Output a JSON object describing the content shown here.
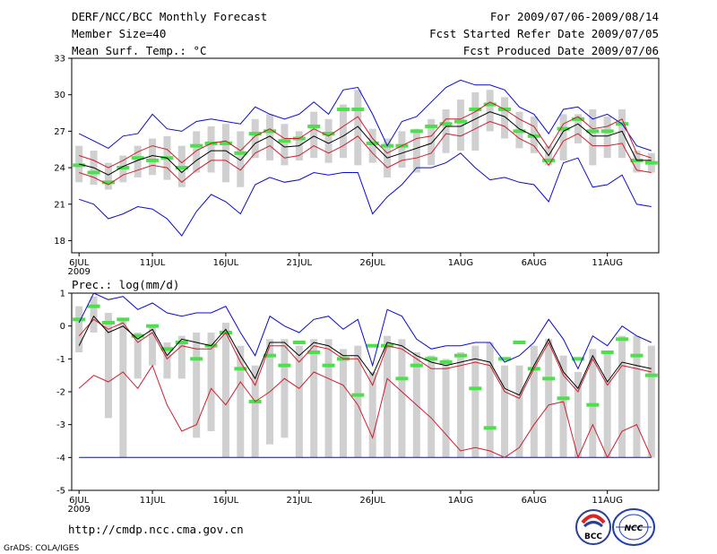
{
  "header": {
    "title": "DERF/NCC/BCC Monthly Forecast",
    "member_size": "Member Size=40",
    "variable": "Mean Surf. Temp.: °C",
    "period": "For 2009/07/06-2009/08/14",
    "started": "Fcst Started Refer Date 2009/07/05",
    "produced": "Fcst Produced Date 2009/07/06"
  },
  "footer": {
    "url": "http://cmdp.ncc.cma.gov.cn",
    "credit": "GrADS: COLA/IGES",
    "logo_bcc": "BCC",
    "logo_ncc": "NCC"
  },
  "colors": {
    "mean": "#000000",
    "spread": "#cc1f2e",
    "extreme": "#0b0bcc",
    "box": "#d0d0d0",
    "median": "#4ce04c"
  },
  "chart_data": [
    {
      "type": "box",
      "title": "Mean Surf. Temp.: °C",
      "x_tick_labels": [
        "6JUL",
        "11JUL",
        "16JUL",
        "21JUL",
        "26JUL",
        "1AUG",
        "6AUG",
        "11AUG"
      ],
      "x_tick_days": [
        1,
        6,
        11,
        16,
        21,
        27,
        32,
        37
      ],
      "year_label": "2009",
      "ylim": [
        17,
        33
      ],
      "y_ticks": [
        18,
        21,
        24,
        27,
        30,
        33
      ],
      "days": 40,
      "mean": [
        24.3,
        24.0,
        23.4,
        24.1,
        24.6,
        25.0,
        24.8,
        23.6,
        24.6,
        25.4,
        25.4,
        24.6,
        26.0,
        26.6,
        25.7,
        25.8,
        26.6,
        26.0,
        26.6,
        27.4,
        26.0,
        24.8,
        25.2,
        25.6,
        26.0,
        27.4,
        27.4,
        28.0,
        28.6,
        28.2,
        27.2,
        26.6,
        25.0,
        27.0,
        27.6,
        26.6,
        26.6,
        27.0,
        24.6,
        24.6
      ],
      "upper": [
        25.0,
        24.6,
        24.0,
        24.6,
        25.3,
        25.8,
        25.5,
        24.4,
        25.4,
        26.0,
        26.2,
        25.4,
        26.6,
        27.2,
        26.4,
        26.4,
        27.2,
        26.6,
        27.4,
        28.2,
        26.4,
        25.2,
        25.8,
        26.4,
        26.6,
        28.0,
        28.0,
        28.6,
        29.4,
        28.8,
        28.0,
        27.4,
        25.6,
        27.6,
        28.2,
        27.2,
        27.4,
        28.0,
        25.2,
        24.8
      ],
      "lower": [
        23.6,
        23.2,
        22.6,
        23.4,
        23.8,
        24.2,
        24.0,
        22.8,
        23.8,
        24.6,
        24.6,
        23.8,
        25.2,
        25.8,
        24.8,
        25.0,
        25.8,
        25.2,
        25.8,
        26.6,
        25.2,
        24.0,
        24.6,
        24.8,
        25.2,
        26.8,
        26.6,
        27.2,
        27.8,
        27.4,
        26.4,
        25.8,
        24.2,
        26.2,
        26.8,
        25.8,
        25.8,
        26.0,
        23.8,
        23.6
      ],
      "max": [
        26.8,
        26.2,
        25.6,
        26.6,
        26.8,
        28.4,
        27.2,
        27.0,
        27.8,
        28.0,
        27.8,
        27.6,
        29.0,
        28.4,
        28.0,
        28.4,
        29.4,
        28.4,
        30.4,
        30.6,
        28.4,
        25.8,
        27.8,
        28.2,
        29.4,
        30.6,
        31.2,
        30.8,
        30.8,
        30.4,
        29.0,
        28.4,
        26.8,
        28.8,
        29.0,
        28.0,
        28.4,
        27.6,
        25.8,
        25.4
      ],
      "min": [
        21.4,
        21.0,
        19.8,
        20.2,
        20.8,
        20.6,
        19.8,
        18.4,
        20.4,
        21.8,
        21.2,
        20.2,
        22.6,
        23.2,
        22.8,
        23.0,
        23.6,
        23.4,
        23.6,
        23.6,
        20.2,
        21.6,
        22.6,
        24.0,
        24.0,
        24.4,
        25.2,
        24.0,
        23.0,
        23.2,
        22.8,
        22.6,
        21.2,
        24.4,
        24.8,
        22.4,
        22.6,
        23.4,
        21.0,
        20.8
      ],
      "box_hi": [
        25.8,
        25.4,
        24.4,
        25.0,
        25.8,
        26.4,
        26.6,
        25.8,
        27.0,
        27.4,
        27.6,
        27.0,
        28.0,
        28.4,
        27.6,
        27.0,
        28.6,
        28.0,
        29.2,
        30.4,
        27.2,
        26.4,
        27.0,
        27.2,
        28.0,
        28.8,
        29.6,
        30.2,
        30.4,
        29.8,
        28.6,
        28.2,
        25.8,
        28.4,
        28.4,
        28.8,
        28.2,
        28.8,
        25.4,
        25.2
      ],
      "box_lo": [
        22.8,
        22.6,
        22.2,
        22.8,
        23.2,
        23.4,
        23.0,
        22.4,
        23.6,
        23.6,
        22.8,
        22.4,
        24.8,
        24.6,
        24.2,
        24.6,
        24.8,
        24.4,
        24.8,
        24.2,
        24.4,
        23.2,
        24.0,
        23.6,
        24.2,
        25.2,
        25.4,
        25.4,
        27.0,
        26.4,
        25.6,
        25.2,
        24.2,
        24.6,
        26.0,
        24.2,
        24.8,
        24.8,
        23.6,
        23.6
      ],
      "median": [
        24.2,
        23.6,
        22.8,
        24.0,
        24.8,
        24.6,
        24.8,
        24.0,
        25.8,
        26.0,
        26.0,
        25.2,
        26.8,
        27.0,
        26.2,
        26.4,
        27.4,
        26.8,
        28.8,
        28.8,
        26.0,
        25.8,
        25.8,
        27.0,
        27.4,
        27.6,
        27.8,
        28.8,
        29.2,
        28.8,
        27.0,
        26.6,
        24.6,
        27.2,
        28.0,
        27.0,
        27.0,
        27.6,
        24.6,
        24.4
      ]
    },
    {
      "type": "box",
      "title": "Prec.: log(mm/d)",
      "x_tick_labels": [
        "6JUL",
        "11JUL",
        "16JUL",
        "21JUL",
        "26JUL",
        "1AUG",
        "6AUG",
        "11AUG"
      ],
      "x_tick_days": [
        1,
        6,
        11,
        16,
        21,
        27,
        32,
        37
      ],
      "year_label": "2009",
      "ylim": [
        -5,
        1
      ],
      "y_ticks": [
        -5,
        -4,
        -3,
        -2,
        -1,
        0,
        1
      ],
      "days": 40,
      "mean": [
        -0.6,
        0.3,
        -0.2,
        0.0,
        -0.4,
        -0.1,
        -0.9,
        -0.4,
        -0.5,
        -0.6,
        -0.1,
        -0.9,
        -1.6,
        -0.5,
        -0.5,
        -0.9,
        -0.5,
        -0.6,
        -0.9,
        -0.9,
        -1.5,
        -0.5,
        -0.6,
        -0.9,
        -1.1,
        -1.2,
        -1.1,
        -1.0,
        -1.1,
        -1.9,
        -2.1,
        -1.2,
        -0.4,
        -1.4,
        -1.9,
        -0.9,
        -1.7,
        -1.1,
        -1.2,
        -1.3
      ],
      "upper": [
        -0.3,
        0.2,
        -0.1,
        0.1,
        -0.5,
        -0.2,
        -1.0,
        -0.6,
        -0.7,
        -0.7,
        -0.2,
        -1.1,
        -1.8,
        -0.6,
        -0.6,
        -1.1,
        -0.6,
        -0.7,
        -1.0,
        -1.0,
        -1.8,
        -0.6,
        -0.7,
        -1.0,
        -1.3,
        -1.3,
        -1.2,
        -1.1,
        -1.2,
        -2.0,
        -2.2,
        -1.3,
        -0.5,
        -1.5,
        -2.0,
        -1.0,
        -1.8,
        -1.2,
        -1.3,
        -1.4
      ],
      "lower": [
        -1.9,
        -1.5,
        -1.7,
        -1.4,
        -1.9,
        -1.2,
        -2.4,
        -3.2,
        -3.0,
        -1.9,
        -2.4,
        -1.7,
        -2.3,
        -2.0,
        -1.6,
        -1.9,
        -1.4,
        -1.6,
        -1.8,
        -2.4,
        -3.4,
        -1.6,
        -2.0,
        -2.4,
        -2.8,
        -3.3,
        -3.8,
        -3.7,
        -3.8,
        -4.0,
        -3.7,
        -3.0,
        -2.4,
        -2.3,
        -4.0,
        -3.0,
        -4.0,
        -3.2,
        -3.0,
        -4.0
      ],
      "max": [
        0.1,
        1.0,
        0.8,
        0.9,
        0.5,
        0.7,
        0.4,
        0.3,
        0.4,
        0.4,
        0.6,
        -0.2,
        -0.9,
        0.3,
        0.0,
        -0.2,
        0.2,
        0.3,
        -0.1,
        0.2,
        -1.2,
        0.5,
        0.3,
        -0.4,
        -0.7,
        -0.6,
        -0.6,
        -0.5,
        -0.5,
        -1.1,
        -0.9,
        -0.5,
        0.2,
        -0.4,
        -1.3,
        -0.3,
        -0.6,
        0.0,
        -0.3,
        -0.5
      ],
      "min": [
        -4.0,
        -4.0,
        -4.0,
        -4.0,
        -4.0,
        -4.0,
        -4.0,
        -4.0,
        -4.0,
        -4.0,
        -4.0,
        -4.0,
        -4.0,
        -4.0,
        -4.0,
        -4.0,
        -4.0,
        -4.0,
        -4.0,
        -4.0,
        -4.0,
        -4.0,
        -4.0,
        -4.0,
        -4.0,
        -4.0,
        -4.0,
        -4.0,
        -4.0,
        -4.0,
        -4.0,
        -4.0,
        -4.0,
        -4.0,
        -4.0,
        -4.0,
        -4.0,
        -4.0,
        -4.0,
        -4.0
      ],
      "box_hi": [
        0.6,
        0.9,
        0.4,
        0.2,
        -0.2,
        0.0,
        -0.5,
        -0.3,
        -0.2,
        -0.2,
        0.1,
        -0.6,
        -1.2,
        -0.4,
        -0.4,
        -0.6,
        -0.4,
        -0.4,
        -0.7,
        -0.6,
        -1.4,
        -0.3,
        -0.4,
        -0.8,
        -0.9,
        -1.0,
        -0.8,
        -0.6,
        -0.5,
        -1.2,
        -1.2,
        -0.6,
        -0.4,
        -0.9,
        -1.4,
        -0.7,
        -0.8,
        -0.3,
        -0.3,
        -0.6
      ],
      "box_lo": [
        -0.8,
        -0.2,
        -2.8,
        -4.0,
        -1.6,
        -1.2,
        -1.6,
        -1.6,
        -3.4,
        -3.2,
        -4.0,
        -4.0,
        -4.0,
        -3.6,
        -3.4,
        -4.0,
        -4.0,
        -4.0,
        -4.0,
        -4.0,
        -4.0,
        -4.0,
        -4.0,
        -4.0,
        -4.0,
        -4.0,
        -4.0,
        -4.0,
        -4.0,
        -4.0,
        -4.0,
        -4.0,
        -4.0,
        -4.0,
        -4.0,
        -4.0,
        -4.0,
        -4.0,
        -4.0,
        -4.0
      ],
      "median": [
        0.2,
        0.6,
        0.1,
        0.2,
        -0.3,
        0.0,
        -0.7,
        -0.5,
        -1.0,
        -0.6,
        -0.2,
        -1.3,
        -2.3,
        -0.9,
        -1.2,
        -0.5,
        -0.8,
        -1.2,
        -1.0,
        -2.1,
        -0.6,
        -0.6,
        -1.6,
        -1.2,
        -1.0,
        -1.1,
        -0.9,
        -1.9,
        -3.1,
        -1.0,
        -0.5,
        -1.3,
        -1.6,
        -2.2,
        -1.0,
        -2.4,
        -0.8,
        -0.4,
        -0.9,
        -1.5
      ]
    }
  ]
}
